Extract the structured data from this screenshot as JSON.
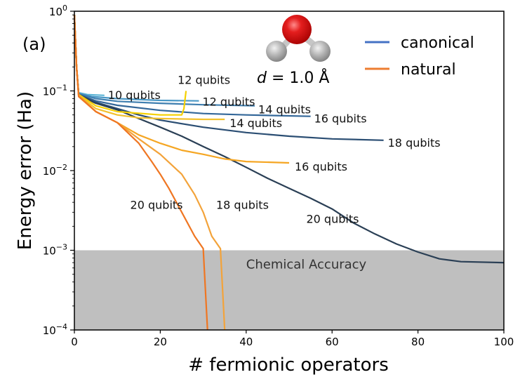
{
  "chart_data": {
    "type": "line",
    "panel_label": "(a)",
    "xlabel": "# fermionic operators",
    "ylabel": "Energy error (Ha)",
    "xlim": [
      0,
      100
    ],
    "ylim": [
      0.0001,
      1
    ],
    "yscale": "log",
    "xticks": [
      0,
      20,
      40,
      60,
      80,
      100
    ],
    "yticks": [
      {
        "value": 0.0001,
        "base": "10",
        "exp": "−4"
      },
      {
        "value": 0.001,
        "base": "10",
        "exp": "−3"
      },
      {
        "value": 0.01,
        "base": "10",
        "exp": "−2"
      },
      {
        "value": 0.1,
        "base": "10",
        "exp": "−1"
      },
      {
        "value": 1,
        "base": "10",
        "exp": "0"
      }
    ],
    "chemical_accuracy": {
      "label": "Chemical Accuracy",
      "threshold": 0.001,
      "color": "#bfbfbf"
    },
    "molecule": {
      "d_symbol": "d",
      "d_text": " = 1.0 Å"
    },
    "legend": [
      {
        "name": "canonical",
        "color": "#4472c4"
      },
      {
        "name": "natural",
        "color": "#ed7d31"
      }
    ],
    "series": [
      {
        "name": "canonical 10 qubits",
        "family": "canonical",
        "label": "10 qubits",
        "color": "#5eb6d6",
        "points": [
          [
            0,
            0.9
          ],
          [
            0.5,
            0.2
          ],
          [
            1,
            0.095
          ],
          [
            3,
            0.09
          ],
          [
            7,
            0.088
          ]
        ]
      },
      {
        "name": "canonical 12 qubits",
        "family": "canonical",
        "label": "12 qubits",
        "color": "#4a98c6",
        "points": [
          [
            0,
            0.9
          ],
          [
            0.5,
            0.2
          ],
          [
            1,
            0.093
          ],
          [
            4,
            0.085
          ],
          [
            10,
            0.08
          ],
          [
            20,
            0.076
          ],
          [
            29,
            0.075
          ]
        ]
      },
      {
        "name": "canonical 14 qubits",
        "family": "canonical",
        "label": "14 qubits",
        "color": "#3f7fb0",
        "points": [
          [
            0,
            0.9
          ],
          [
            0.5,
            0.2
          ],
          [
            1,
            0.092
          ],
          [
            5,
            0.08
          ],
          [
            10,
            0.074
          ],
          [
            20,
            0.07
          ],
          [
            30,
            0.067
          ],
          [
            42,
            0.065
          ]
        ]
      },
      {
        "name": "canonical 16 qubits",
        "family": "canonical",
        "label": "16 qubits",
        "color": "#336799",
        "points": [
          [
            0,
            0.9
          ],
          [
            0.5,
            0.2
          ],
          [
            1,
            0.09
          ],
          [
            5,
            0.075
          ],
          [
            10,
            0.066
          ],
          [
            20,
            0.057
          ],
          [
            30,
            0.052
          ],
          [
            40,
            0.05
          ],
          [
            55,
            0.048
          ]
        ]
      },
      {
        "name": "canonical 18 qubits",
        "family": "canonical",
        "label": "18 qubits",
        "color": "#2b4e73",
        "points": [
          [
            0,
            0.9
          ],
          [
            0.5,
            0.2
          ],
          [
            1,
            0.09
          ],
          [
            5,
            0.072
          ],
          [
            10,
            0.06
          ],
          [
            15,
            0.05
          ],
          [
            20,
            0.043
          ],
          [
            30,
            0.035
          ],
          [
            40,
            0.03
          ],
          [
            50,
            0.027
          ],
          [
            60,
            0.025
          ],
          [
            72,
            0.024
          ]
        ]
      },
      {
        "name": "canonical 20 qubits",
        "family": "canonical",
        "label": "20 qubits",
        "color": "#2a3f55",
        "points": [
          [
            0,
            0.9
          ],
          [
            0.5,
            0.2
          ],
          [
            1,
            0.088
          ],
          [
            5,
            0.07
          ],
          [
            10,
            0.058
          ],
          [
            15,
            0.045
          ],
          [
            20,
            0.035
          ],
          [
            25,
            0.027
          ],
          [
            30,
            0.02
          ],
          [
            35,
            0.015
          ],
          [
            40,
            0.011
          ],
          [
            45,
            0.008
          ],
          [
            50,
            0.006
          ],
          [
            55,
            0.0045
          ],
          [
            60,
            0.0033
          ],
          [
            65,
            0.0022
          ],
          [
            70,
            0.0016
          ],
          [
            75,
            0.0012
          ],
          [
            80,
            0.00095
          ],
          [
            85,
            0.00078
          ],
          [
            90,
            0.00072
          ],
          [
            100,
            0.0007
          ]
        ]
      },
      {
        "name": "natural 12 qubits",
        "family": "natural",
        "label": "12 qubits",
        "color": "#f5d000",
        "points": [
          [
            0,
            0.9
          ],
          [
            0.5,
            0.2
          ],
          [
            1,
            0.09
          ],
          [
            5,
            0.065
          ],
          [
            10,
            0.055
          ],
          [
            20,
            0.05
          ],
          [
            25,
            0.05
          ],
          [
            25.5,
            0.06
          ],
          [
            26,
            0.1
          ]
        ]
      },
      {
        "name": "natural 14 qubits",
        "family": "natural",
        "label": "14 qubits",
        "color": "#f2c12e",
        "points": [
          [
            0,
            0.9
          ],
          [
            0.5,
            0.2
          ],
          [
            1,
            0.088
          ],
          [
            5,
            0.06
          ],
          [
            10,
            0.05
          ],
          [
            15,
            0.046
          ],
          [
            20,
            0.045
          ],
          [
            30,
            0.044
          ],
          [
            35,
            0.044
          ]
        ]
      },
      {
        "name": "natural 16 qubits",
        "family": "natural",
        "label": "16 qubits",
        "color": "#f5a623",
        "points": [
          [
            0,
            0.9
          ],
          [
            0.5,
            0.2
          ],
          [
            1,
            0.088
          ],
          [
            5,
            0.055
          ],
          [
            10,
            0.04
          ],
          [
            15,
            0.028
          ],
          [
            20,
            0.022
          ],
          [
            25,
            0.018
          ],
          [
            30,
            0.016
          ],
          [
            35,
            0.014
          ],
          [
            40,
            0.013
          ],
          [
            50,
            0.0125
          ]
        ]
      },
      {
        "name": "natural 18 qubits",
        "family": "natural",
        "label": "18 qubits",
        "color": "#f3a33a",
        "points": [
          [
            0,
            0.9
          ],
          [
            0.5,
            0.2
          ],
          [
            1,
            0.085
          ],
          [
            5,
            0.055
          ],
          [
            10,
            0.04
          ],
          [
            15,
            0.025
          ],
          [
            20,
            0.016
          ],
          [
            25,
            0.009
          ],
          [
            28,
            0.005
          ],
          [
            30,
            0.003
          ],
          [
            32,
            0.0015
          ],
          [
            34,
            0.00105
          ],
          [
            35,
            0.0001
          ]
        ]
      },
      {
        "name": "natural 20 qubits",
        "family": "natural",
        "label": "20 qubits",
        "color": "#ef7622",
        "points": [
          [
            0,
            0.9
          ],
          [
            0.5,
            0.2
          ],
          [
            1,
            0.085
          ],
          [
            5,
            0.055
          ],
          [
            10,
            0.04
          ],
          [
            15,
            0.022
          ],
          [
            18,
            0.013
          ],
          [
            20,
            0.009
          ],
          [
            22,
            0.006
          ],
          [
            25,
            0.003
          ],
          [
            28,
            0.0015
          ],
          [
            30,
            0.00105
          ],
          [
            31,
            0.0001
          ]
        ]
      }
    ],
    "annotations": [
      {
        "text": "10 qubits",
        "series": "canonical 10 qubits"
      },
      {
        "text": "12 qubits",
        "series": "canonical 12 qubits"
      },
      {
        "text": "14 qubits",
        "series": "canonical 14 qubits"
      },
      {
        "text": "16 qubits",
        "series": "canonical 16 qubits"
      },
      {
        "text": "18 qubits",
        "series": "canonical 18 qubits"
      },
      {
        "text": "20 qubits",
        "series": "canonical 20 qubits"
      },
      {
        "text": "12 qubits",
        "series": "natural 12 qubits"
      },
      {
        "text": "14 qubits",
        "series": "natural 14 qubits"
      },
      {
        "text": "16 qubits",
        "series": "natural 16 qubits"
      },
      {
        "text": "18 qubits",
        "series": "natural 18 qubits"
      },
      {
        "text": "20 qubits",
        "series": "natural 20 qubits"
      }
    ]
  }
}
